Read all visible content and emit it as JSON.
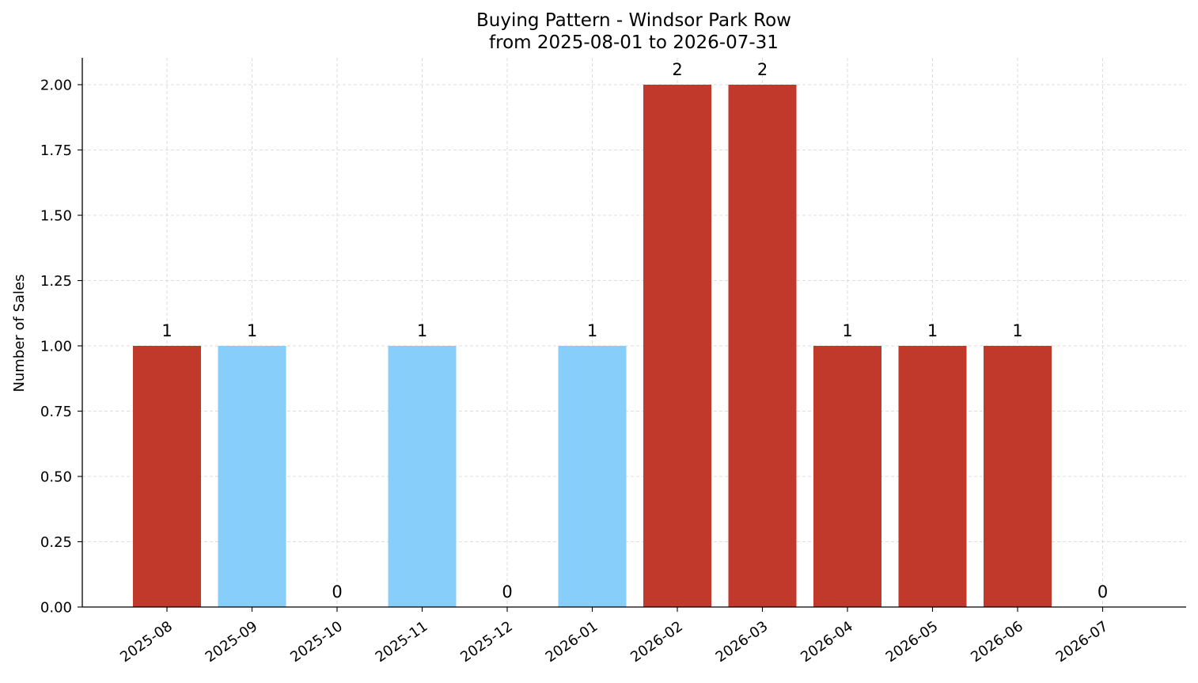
{
  "chart_data": {
    "type": "bar",
    "title": "Buying Pattern - Windsor Park Row",
    "subtitle": "from 2025-08-01 to 2026-07-31",
    "xlabel": "",
    "ylabel": "Number of Sales",
    "categories": [
      "2025-08",
      "2025-09",
      "2025-10",
      "2025-11",
      "2025-12",
      "2026-01",
      "2026-02",
      "2026-03",
      "2026-04",
      "2026-05",
      "2026-06",
      "2026-07"
    ],
    "values": [
      1,
      1,
      0,
      1,
      0,
      1,
      2,
      2,
      1,
      1,
      1,
      0
    ],
    "bar_colors": [
      "#c0392b",
      "#87cefa",
      "#c0392b",
      "#87cefa",
      "#c0392b",
      "#87cefa",
      "#c0392b",
      "#c0392b",
      "#c0392b",
      "#c0392b",
      "#c0392b",
      "#c0392b"
    ],
    "data_labels": [
      "1",
      "1",
      "0",
      "1",
      "0",
      "1",
      "2",
      "2",
      "1",
      "1",
      "1",
      "0"
    ],
    "ylim": [
      0,
      2.1
    ],
    "yticks": [
      "0.00",
      "0.25",
      "0.50",
      "0.75",
      "1.00",
      "1.25",
      "1.50",
      "1.75",
      "2.00"
    ],
    "grid": true,
    "legend": "none"
  }
}
